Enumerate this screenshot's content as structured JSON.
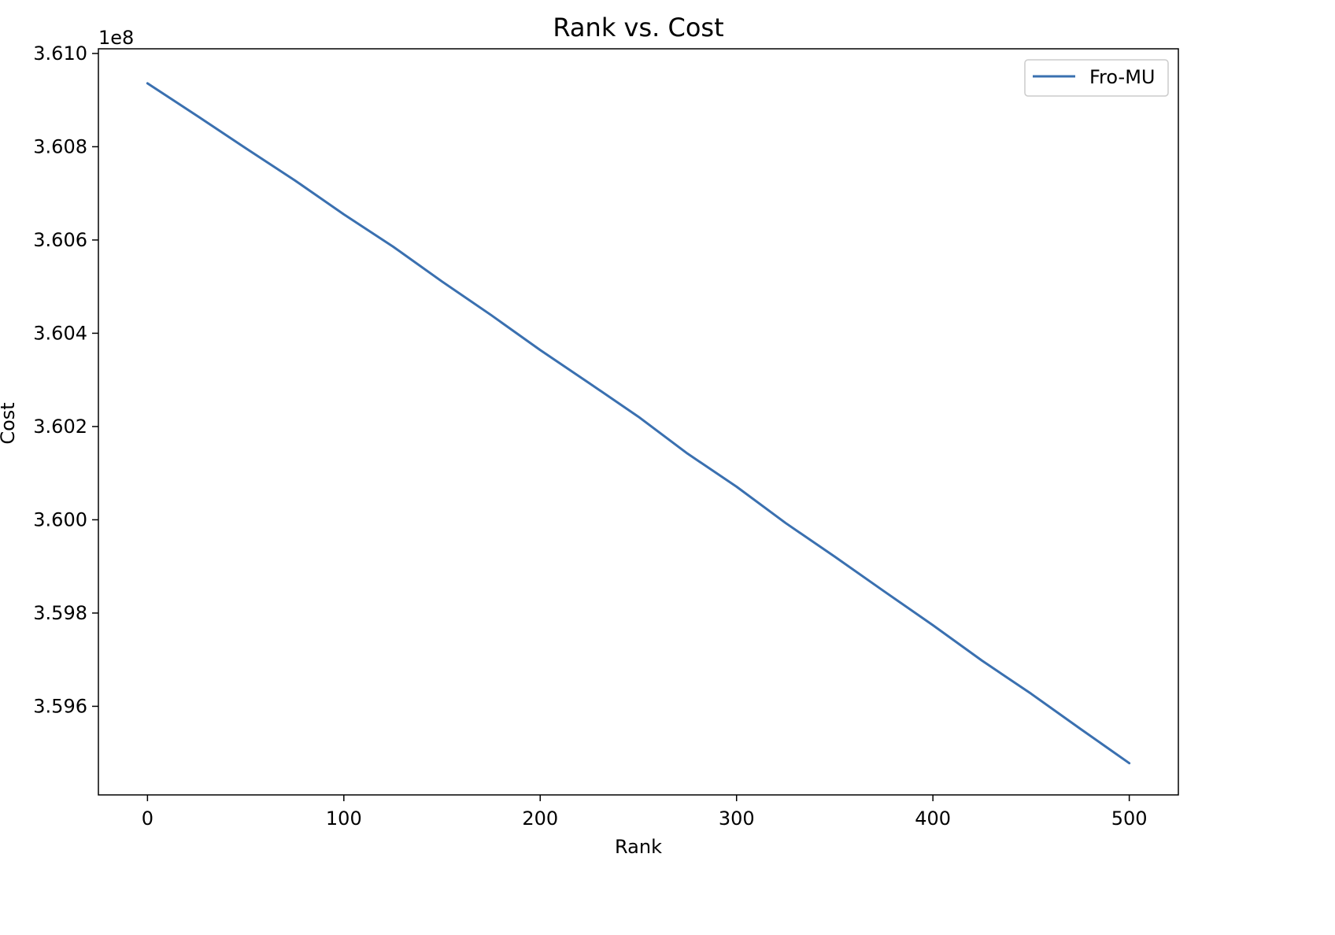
{
  "chart_data": {
    "type": "line",
    "title": "Rank vs. Cost",
    "xlabel": "Rank",
    "ylabel": "Cost",
    "y_offset_label": "1e8",
    "y_scale_factor": 100000000,
    "xlim": [
      -25,
      525
    ],
    "ylim": [
      3.5941,
      3.6101
    ],
    "x_ticks": [
      0,
      100,
      200,
      300,
      400,
      500
    ],
    "x_tick_labels": [
      "0",
      "100",
      "200",
      "300",
      "400",
      "500"
    ],
    "y_ticks": [
      3.596,
      3.598,
      3.6,
      3.602,
      3.604,
      3.606,
      3.608,
      3.61
    ],
    "y_tick_labels": [
      "3.596",
      "3.598",
      "3.600",
      "3.602",
      "3.604",
      "3.606",
      "3.608",
      "3.610"
    ],
    "grid": false,
    "legend_position": "top-right",
    "series": [
      {
        "name": "Fro-MU",
        "color": "#3a70b0",
        "x": [
          0,
          25,
          50,
          75,
          100,
          125,
          150,
          175,
          200,
          225,
          250,
          275,
          300,
          325,
          350,
          375,
          400,
          425,
          450,
          475,
          500
        ],
        "y": [
          3.60936,
          3.60867,
          3.60797,
          3.60728,
          3.60655,
          3.60586,
          3.60511,
          3.60439,
          3.60364,
          3.60293,
          3.60221,
          3.60142,
          3.60071,
          3.59993,
          3.59921,
          3.59847,
          3.59774,
          3.59698,
          3.59627,
          3.59552,
          3.59478
        ]
      }
    ]
  }
}
